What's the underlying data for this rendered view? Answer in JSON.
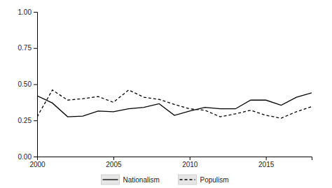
{
  "chart_data": {
    "type": "line",
    "x": [
      2000,
      2001,
      2002,
      2003,
      2004,
      2005,
      2006,
      2007,
      2008,
      2009,
      2010,
      2011,
      2012,
      2013,
      2014,
      2015,
      2016,
      2017,
      2018
    ],
    "series": [
      {
        "name": "Nationalism",
        "color": "#000000",
        "line_style": "solid",
        "values": [
          0.42,
          0.37,
          0.275,
          0.28,
          0.315,
          0.31,
          0.33,
          0.34,
          0.365,
          0.285,
          0.315,
          0.34,
          0.33,
          0.33,
          0.39,
          0.39,
          0.355,
          0.41,
          0.44
        ]
      },
      {
        "name": "Populism",
        "color": "#000000",
        "line_style": "dashed",
        "values": [
          0.275,
          0.46,
          0.39,
          0.4,
          0.415,
          0.375,
          0.46,
          0.41,
          0.395,
          0.36,
          0.33,
          0.32,
          0.275,
          0.295,
          0.32,
          0.285,
          0.265,
          0.31,
          0.345
        ]
      }
    ],
    "xlim": [
      2000,
      2018
    ],
    "xticks": [
      2000,
      2005,
      2010,
      2015
    ],
    "ylim": [
      0,
      1
    ],
    "yticks": [
      {
        "value": 0,
        "label": "0.00"
      },
      {
        "value": 0.25,
        "label": "0.25"
      },
      {
        "value": 0.5,
        "label": "0.50"
      },
      {
        "value": 0.75,
        "label": "0.75"
      },
      {
        "value": 1,
        "label": "1.00"
      }
    ],
    "grid": false,
    "legend": "bottom"
  }
}
